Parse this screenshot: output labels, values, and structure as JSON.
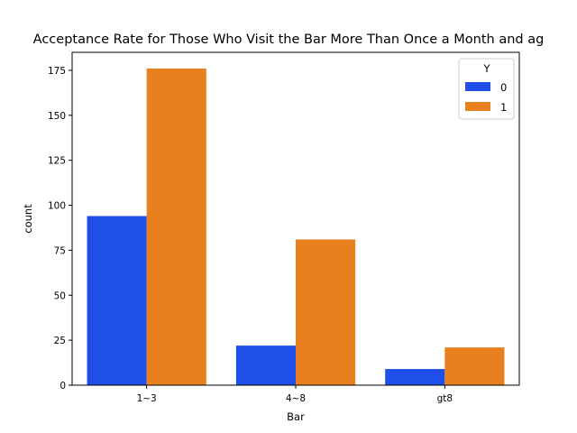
{
  "chart_data": {
    "type": "bar",
    "title": "Acceptance Rate for Those Who Visit the Bar More Than Once a Month and ag",
    "xlabel": "Bar",
    "ylabel": "count",
    "categories": [
      "1~3",
      "4~8",
      "gt8"
    ],
    "series": [
      {
        "name": "0",
        "values": [
          94,
          22,
          9
        ],
        "color": "#1f4fe8"
      },
      {
        "name": "1",
        "values": [
          176,
          81,
          21
        ],
        "color": "#e8801f"
      }
    ],
    "ylim": [
      0,
      185
    ],
    "yticks": [
      0,
      25,
      50,
      75,
      100,
      125,
      150,
      175
    ],
    "legend": {
      "title": "Y",
      "placement": "top-right"
    },
    "grid": false
  }
}
